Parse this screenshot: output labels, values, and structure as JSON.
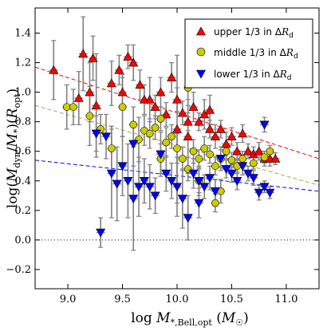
{
  "chart_data": {
    "type": "scatter",
    "xlabel": "log M*,Bell,opt (M☉)",
    "ylabel": "log(Mdyn/M*)(Ropt)",
    "xlim": [
      8.7,
      11.3
    ],
    "ylim": [
      -0.33,
      1.57
    ],
    "x_ticks": [
      9.0,
      9.5,
      10.0,
      10.5,
      11.0
    ],
    "x_tick_labels": [
      "9.0",
      "9.5",
      "10.0",
      "10.5",
      "11.0"
    ],
    "y_ticks": [
      -0.2,
      0.0,
      0.2,
      0.4,
      0.6,
      0.8,
      1.0,
      1.2,
      1.4
    ],
    "y_tick_labels": [
      "−0.2",
      "0.0",
      "0.2",
      "0.4",
      "0.6",
      "0.8",
      "1.0",
      "1.2",
      "1.4"
    ],
    "reference_line": {
      "y": 0.0,
      "style": "dotted",
      "color": "#000000"
    },
    "legend_placement": "top-right",
    "grid": false,
    "colors": {
      "upper": "#ff0000",
      "middle": "#cccc00",
      "lower": "#0000ff",
      "errorbar": "#808080",
      "middle_fit": "#aaaa44"
    },
    "series": [
      {
        "name": "upper 1/3 in ΔRd",
        "marker": "triangle-up",
        "color": "#ff0000",
        "fit": {
          "x": [
            8.7,
            11.3
          ],
          "y": [
            1.17,
            0.55
          ]
        },
        "points": [
          [
            8.87,
            1.15,
            0.2
          ],
          [
            9.14,
            1.26,
            0.25
          ],
          [
            9.23,
            1.23,
            0.15
          ],
          [
            9.1,
            0.96,
            0.18
          ],
          [
            9.2,
            1.0,
            0.2
          ],
          [
            9.26,
            0.91,
            0.35
          ],
          [
            9.4,
            1.06,
            0.15
          ],
          [
            9.47,
            1.15,
            0.1
          ],
          [
            9.5,
            1.0,
            0.12
          ],
          [
            9.55,
            1.24,
            0.08
          ],
          [
            9.6,
            1.2,
            0.12
          ],
          [
            9.66,
            1.05,
            0.1
          ],
          [
            9.7,
            0.95,
            0.1
          ],
          [
            9.75,
            0.95,
            0.15
          ],
          [
            9.8,
            0.9,
            0.08
          ],
          [
            9.85,
            1.0,
            0.1
          ],
          [
            9.9,
            0.85,
            0.08
          ],
          [
            9.95,
            1.1,
            0.1
          ],
          [
            10.0,
            0.95,
            0.08
          ],
          [
            10.05,
            0.86,
            0.08
          ],
          [
            10.1,
            0.8,
            0.06
          ],
          [
            10.15,
            0.9,
            0.1
          ],
          [
            10.2,
            0.8,
            0.06
          ],
          [
            10.25,
            0.85,
            0.1
          ],
          [
            10.3,
            0.75,
            0.06
          ],
          [
            10.35,
            0.7,
            0.08
          ],
          [
            10.4,
            0.75,
            0.06
          ],
          [
            10.45,
            0.65,
            0.08
          ],
          [
            10.5,
            0.7,
            0.06
          ],
          [
            10.55,
            0.6,
            0.06
          ],
          [
            10.6,
            0.72,
            0.06
          ],
          [
            10.65,
            0.6,
            0.05
          ],
          [
            10.7,
            0.58,
            0.05
          ],
          [
            10.75,
            0.6,
            0.06
          ],
          [
            10.8,
            0.55,
            0.05
          ],
          [
            10.85,
            0.55,
            0.05
          ],
          [
            10.9,
            0.55,
            0.04
          ],
          [
            10.0,
            0.75,
            0.5
          ],
          [
            10.1,
            0.7,
            0.25
          ],
          [
            10.3,
            0.88,
            0.1
          ]
        ]
      },
      {
        "name": "middle 1/3 in ΔRd",
        "marker": "circle",
        "color": "#cccc00",
        "fit": {
          "x": [
            8.7,
            11.3
          ],
          "y": [
            0.91,
            0.37
          ]
        },
        "points": [
          [
            8.99,
            0.9,
            0.15
          ],
          [
            9.05,
            0.9,
            0.12
          ],
          [
            9.2,
            0.84,
            0.2
          ],
          [
            9.3,
            0.75,
            0.1
          ],
          [
            9.4,
            0.62,
            0.15
          ],
          [
            9.5,
            0.9,
            0.2
          ],
          [
            9.6,
            0.78,
            0.12
          ],
          [
            9.65,
            0.68,
            0.15
          ],
          [
            9.7,
            0.74,
            0.1
          ],
          [
            9.75,
            0.72,
            0.1
          ],
          [
            9.8,
            0.76,
            0.08
          ],
          [
            9.85,
            0.82,
            0.08
          ],
          [
            9.9,
            0.66,
            0.1
          ],
          [
            9.95,
            0.7,
            0.08
          ],
          [
            10.0,
            0.62,
            0.1
          ],
          [
            10.05,
            0.55,
            0.08
          ],
          [
            10.1,
            1.03,
            0.12
          ],
          [
            10.15,
            0.6,
            0.08
          ],
          [
            10.2,
            0.55,
            0.06
          ],
          [
            10.25,
            0.62,
            0.08
          ],
          [
            10.3,
            0.58,
            0.06
          ],
          [
            10.35,
            0.5,
            0.06
          ],
          [
            10.4,
            0.55,
            0.06
          ],
          [
            10.45,
            0.6,
            0.05
          ],
          [
            10.5,
            0.54,
            0.05
          ],
          [
            10.55,
            0.5,
            0.05
          ],
          [
            10.6,
            0.55,
            0.05
          ],
          [
            10.7,
            0.52,
            0.04
          ],
          [
            10.8,
            0.56,
            0.04
          ],
          [
            10.85,
            0.6,
            0.04
          ],
          [
            10.2,
            0.4,
            0.08
          ],
          [
            10.4,
            0.33,
            0.08
          ],
          [
            10.35,
            0.25,
            0.06
          ],
          [
            9.85,
            0.55,
            0.1
          ],
          [
            10.1,
            0.48,
            0.08
          ]
        ]
      },
      {
        "name": "lower 1/3 in ΔRd",
        "marker": "triangle-down",
        "color": "#0000ff",
        "fit": {
          "x": [
            8.7,
            11.3
          ],
          "y": [
            0.54,
            0.33
          ]
        },
        "points": [
          [
            9.26,
            0.72,
            0.12
          ],
          [
            9.3,
            0.05,
            0.1
          ],
          [
            9.35,
            0.7,
            0.15
          ],
          [
            9.4,
            0.45,
            0.3
          ],
          [
            9.45,
            0.38,
            0.25
          ],
          [
            9.5,
            0.5,
            0.2
          ],
          [
            9.55,
            0.4,
            0.25
          ],
          [
            9.6,
            0.28,
            0.35
          ],
          [
            9.65,
            0.36,
            0.2
          ],
          [
            9.7,
            0.4,
            0.15
          ],
          [
            9.75,
            0.36,
            0.15
          ],
          [
            9.8,
            0.3,
            0.12
          ],
          [
            9.85,
            0.58,
            0.15
          ],
          [
            9.9,
            0.45,
            0.12
          ],
          [
            9.95,
            0.4,
            0.12
          ],
          [
            10.0,
            0.36,
            0.2
          ],
          [
            10.05,
            0.28,
            0.2
          ],
          [
            10.1,
            0.15,
            0.15
          ],
          [
            10.15,
            0.45,
            0.1
          ],
          [
            10.2,
            0.4,
            0.1
          ],
          [
            10.25,
            0.36,
            0.08
          ],
          [
            10.3,
            0.42,
            0.08
          ],
          [
            10.35,
            0.33,
            0.08
          ],
          [
            10.4,
            0.55,
            0.08
          ],
          [
            10.45,
            0.48,
            0.06
          ],
          [
            10.5,
            0.45,
            0.06
          ],
          [
            10.55,
            0.4,
            0.06
          ],
          [
            10.6,
            0.5,
            0.06
          ],
          [
            10.65,
            0.45,
            0.05
          ],
          [
            10.7,
            0.42,
            0.05
          ],
          [
            10.75,
            0.32,
            0.05
          ],
          [
            10.8,
            0.36,
            0.04
          ],
          [
            10.85,
            0.32,
            0.04
          ],
          [
            10.8,
            0.78,
            0.05
          ],
          [
            10.2,
            0.25,
            0.1
          ],
          [
            9.6,
            0.65,
            0.15
          ]
        ]
      }
    ]
  }
}
